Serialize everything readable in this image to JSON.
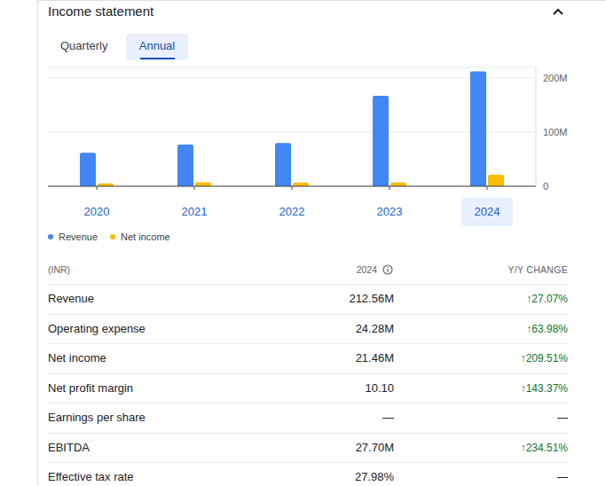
{
  "header": {
    "title": "Income statement"
  },
  "tabs": [
    "Quarterly",
    "Annual"
  ],
  "chart_data": {
    "type": "bar",
    "categories": [
      "2020",
      "2021",
      "2022",
      "2023",
      "2024"
    ],
    "series": [
      {
        "name": "Revenue",
        "color": "#4285f4",
        "values": [
          62,
          77,
          80,
          167.3,
          212.56
        ]
      },
      {
        "name": "Net income",
        "color": "#fbbc04",
        "values": [
          5.5,
          7.5,
          7,
          6.93,
          21.46
        ]
      }
    ],
    "ylim": [
      0,
      220
    ],
    "yticks": [
      0,
      {
        "value": 100,
        "label": "100M"
      },
      {
        "value": 200,
        "label": "200M"
      }
    ],
    "grid": true,
    "legend": "bottom"
  },
  "table": {
    "columns": [
      "(INR)",
      "2024",
      "Y/Y CHANGE"
    ],
    "rows": [
      [
        "Revenue",
        "212.56M",
        "↑27.07%"
      ],
      [
        "Operating expense",
        "24.28M",
        "↑63.98%"
      ],
      [
        "Net income",
        "21.46M",
        "↑209.51%"
      ],
      [
        "Net profit margin",
        "10.10",
        "↑143.37%"
      ],
      [
        "Earnings per share",
        "—",
        "—"
      ],
      [
        "EBITDA",
        "27.70M",
        "↑234.51%"
      ],
      [
        "Effective tax rate",
        "27.98%",
        "—"
      ]
    ]
  }
}
